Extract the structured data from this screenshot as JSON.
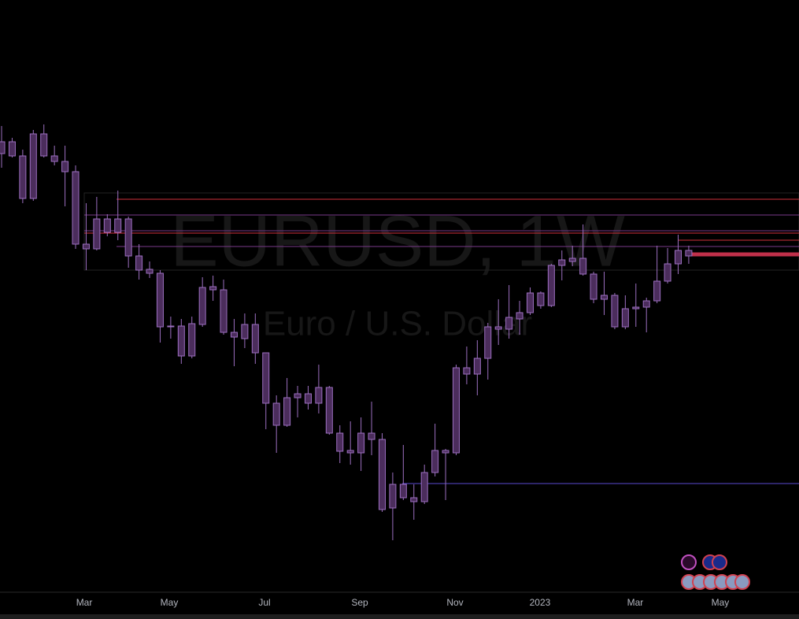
{
  "chart_data": {
    "type": "candlestick",
    "title": "EURUSD, 1W",
    "subtitle": "Euro / U.S. Dollar",
    "open": [
      1.132,
      1.138,
      1.1308,
      1.1092,
      1.142,
      1.1308,
      1.128,
      1.1228,
      1.0836,
      1.0836,
      1.0988,
      1.092,
      1.0988,
      1.08,
      1.0732,
      1.0712,
      1.0444,
      1.0444,
      1.0292,
      1.0452,
      1.0644,
      1.0628,
      1.0412,
      1.038,
      1.0452,
      1.0308,
      0.994,
      0.994,
      1.008,
      1.01,
      1.0052,
      1.0132,
      0.99,
      0.9812,
      0.98,
      0.99,
      0.9868,
      0.952,
      0.964,
      0.9572,
      0.9552,
      0.97,
      0.98,
      0.98,
      1.0232,
      1.02,
      1.028,
      1.0428,
      1.0428,
      1.048,
      1.0512,
      1.0612,
      1.0548,
      1.0752,
      1.0772,
      1.0788,
      1.0708,
      1.058,
      1.06,
      1.044,
      1.0532,
      1.054,
      1.0572,
      1.0672,
      1.076,
      1.0828
    ],
    "high": [
      1.146,
      1.14,
      1.134,
      1.144,
      1.1468,
      1.136,
      1.136,
      1.126,
      1.1068,
      1.11,
      1.1012,
      1.1132,
      1.1,
      1.086,
      1.0772,
      1.0728,
      1.0492,
      1.048,
      1.0492,
      1.0692,
      1.07,
      1.068,
      1.048,
      1.0508,
      1.0508,
      1.0308,
      1.0092,
      1.018,
      1.014,
      1.014,
      1.0248,
      1.014,
      0.994,
      0.996,
      0.998,
      1.006,
      0.99,
      0.97,
      0.984,
      0.964,
      0.974,
      0.9948,
      0.982,
      1.0248,
      1.034,
      1.0372,
      1.046,
      1.058,
      1.0652,
      1.0572,
      1.064,
      1.062,
      1.076,
      1.0828,
      1.0852,
      1.096,
      1.072,
      1.072,
      1.0612,
      1.06,
      1.066,
      1.0588,
      1.0852,
      1.084,
      1.0908,
      1.0852
    ],
    "low": [
      1.1248,
      1.13,
      1.1068,
      1.108,
      1.13,
      1.126,
      1.1052,
      1.0836,
      1.0728,
      1.0828,
      1.09,
      1.088,
      1.074,
      1.068,
      1.0688,
      1.036,
      1.038,
      1.0252,
      1.028,
      1.044,
      1.0572,
      1.04,
      1.024,
      1.0332,
      1.0252,
      0.992,
      0.98,
      0.9932,
      0.998,
      1.002,
      1.0,
      0.9892,
      0.9748,
      0.974,
      0.9708,
      0.9788,
      0.95,
      0.9356,
      0.956,
      0.946,
      0.954,
      0.968,
      0.956,
      0.9788,
      1.0148,
      1.0092,
      1.0172,
      1.0348,
      1.038,
      1.04,
      1.05,
      1.0532,
      1.054,
      1.0676,
      1.0748,
      1.07,
      1.056,
      1.05,
      1.0428,
      1.0428,
      1.044,
      1.0412,
      1.056,
      1.066,
      1.0708,
      1.076
    ],
    "close": [
      1.138,
      1.1308,
      1.1092,
      1.142,
      1.1308,
      1.128,
      1.1228,
      1.086,
      1.086,
      1.0988,
      1.092,
      1.0988,
      1.08,
      1.0728,
      1.0712,
      1.044,
      1.044,
      1.0292,
      1.0456,
      1.064,
      1.0628,
      1.0412,
      1.0388,
      1.0452,
      1.0308,
      1.0052,
      1.0052,
      1.008,
      1.01,
      1.0052,
      1.0132,
      0.99,
      0.9808,
      0.98,
      0.99,
      0.9868,
      0.9512,
      0.964,
      0.9572,
      0.9552,
      0.97,
      0.9812,
      0.9812,
      1.0232,
      1.02,
      1.028,
      1.044,
      1.044,
      1.0488,
      1.0512,
      1.0612,
      1.0548,
      1.0752,
      1.078,
      1.0788,
      1.0708,
      1.058,
      1.06,
      1.044,
      1.0532,
      1.054,
      1.0572,
      1.0672,
      1.076,
      1.0828,
      1.08
    ],
    "color": "#9c6fc0",
    "fill": "#4b2d5c",
    "xlim": [
      -0.15,
      75.43
    ],
    "ylim": [
      0.9092,
      1.21
    ],
    "xticks": [
      {
        "value": 7.82,
        "label": "Mar"
      },
      {
        "value": 15.86,
        "label": "May"
      },
      {
        "value": 24.87,
        "label": "Jul"
      },
      {
        "value": 33.88,
        "label": "Sep"
      },
      {
        "value": 42.89,
        "label": "Nov"
      },
      {
        "value": 50.93,
        "label": "2023"
      },
      {
        "value": 59.94,
        "label": "Mar"
      },
      {
        "value": 67.98,
        "label": "May"
      }
    ],
    "levels": [
      {
        "value": 1.1088,
        "color": "#d0303c",
        "from": 10.87
      },
      {
        "value": 1.1008,
        "color": "#7a3a8a",
        "from": 7.82
      },
      {
        "value": 1.0928,
        "color": "#7a3a8a",
        "from": 7.82
      },
      {
        "value": 1.0916,
        "color": "#d0303c",
        "from": 7.82
      },
      {
        "value": 1.0848,
        "color": "#7a3a8a",
        "from": 10.87
      },
      {
        "value": 1.088,
        "color": "#d0303c",
        "from": 64.04
      },
      {
        "value": 1.0808,
        "color": "#c0304a",
        "from": 65.0
      },
      {
        "value": 0.9644,
        "color": "#5a4ad0",
        "from": 37.9
      }
    ]
  }
}
